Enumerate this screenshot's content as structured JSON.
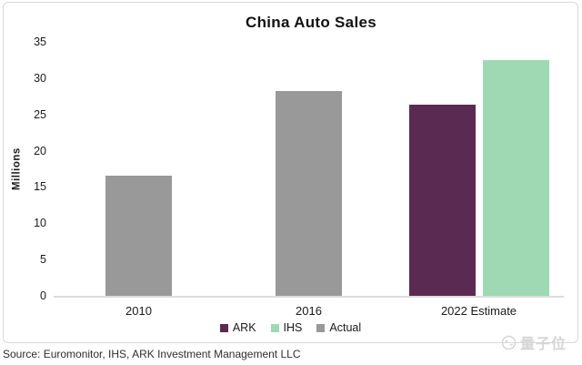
{
  "chart_data": {
    "type": "bar",
    "title": "China Auto Sales",
    "xlabel": "",
    "ylabel": "Millions",
    "ylim": [
      0,
      35
    ],
    "yticks": [
      0,
      5,
      10,
      15,
      20,
      25,
      30,
      35
    ],
    "categories": [
      "2010",
      "2016",
      "2022 Estimate"
    ],
    "series": [
      {
        "name": "ARK",
        "color": "#5b2a52",
        "values": [
          null,
          null,
          26.3
        ]
      },
      {
        "name": "IHS",
        "color": "#9fd9b4",
        "values": [
          null,
          null,
          32.5
        ]
      },
      {
        "name": "Actual",
        "color": "#999999",
        "values": [
          16.6,
          28.2,
          null
        ]
      }
    ],
    "legend": [
      "ARK",
      "IHS",
      "Actual"
    ],
    "legend_position": "bottom",
    "grid": false,
    "axis_line_color": "#dcdcdc"
  },
  "source": {
    "text": "Source: Euromonitor, IHS, ARK Investment Management LLC"
  },
  "watermark": {
    "text": "量子位",
    "color": "#d6d6d6"
  }
}
